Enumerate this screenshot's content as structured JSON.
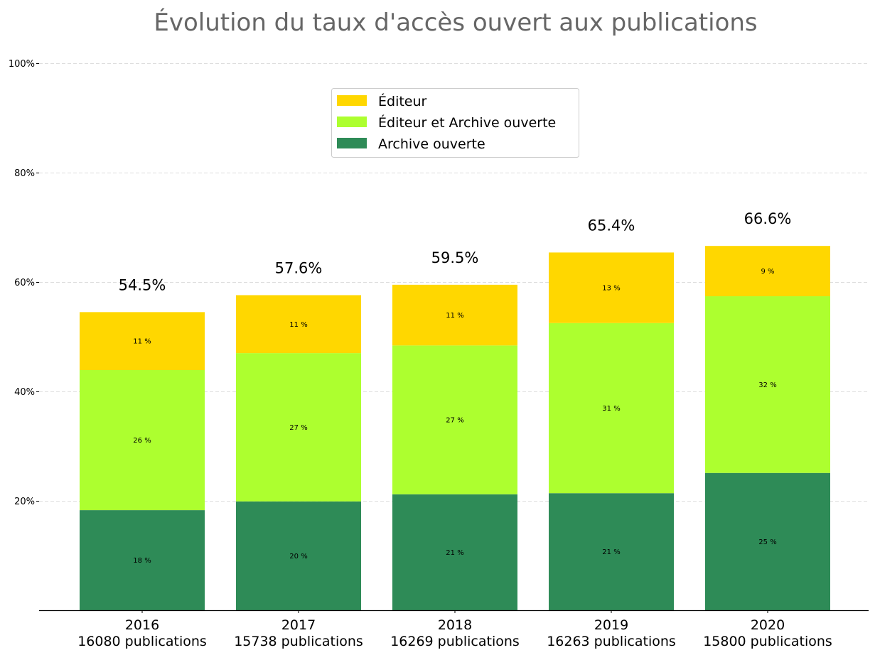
{
  "chart_data": {
    "type": "bar",
    "stacked": true,
    "title": "Évolution du taux d'accès ouvert aux publications",
    "xlabel": "",
    "ylabel": "",
    "ylim": [
      0,
      100
    ],
    "yticks": [
      20,
      40,
      60,
      80,
      100
    ],
    "ytick_labels": [
      "20%",
      "40%",
      "60%",
      "80%",
      "100%"
    ],
    "grid": "y, dashed",
    "categories": [
      "2016",
      "2017",
      "2018",
      "2019",
      "2020"
    ],
    "category_sublabels": [
      "16080 publications",
      "15738 publications",
      "16269 publications",
      "16263 publications",
      "15800 publications"
    ],
    "series": [
      {
        "name": "Archive ouverte",
        "color": "#2e8b57",
        "values": [
          18.3,
          19.9,
          21.2,
          21.4,
          25.1
        ],
        "labels": [
          "18 %",
          "20 %",
          "21 %",
          "21 %",
          "25 %"
        ]
      },
      {
        "name": "Éditeur et Archive ouverte",
        "color": "#adff2f",
        "values": [
          25.6,
          27.1,
          27.2,
          31.1,
          32.3
        ],
        "labels": [
          "26 %",
          "27 %",
          "27 %",
          "31 %",
          "32 %"
        ]
      },
      {
        "name": "Éditeur",
        "color": "#ffd700",
        "values": [
          10.6,
          10.6,
          11.1,
          12.9,
          9.2
        ],
        "labels": [
          "11 %",
          "11 %",
          "11 %",
          "13 %",
          "9 %"
        ]
      }
    ],
    "totals": [
      54.5,
      57.6,
      59.5,
      65.4,
      66.6
    ],
    "total_labels": [
      "54.5%",
      "57.6%",
      "59.5%",
      "65.4%",
      "66.6%"
    ],
    "legend": {
      "placement": "top-center",
      "entries": [
        "Éditeur",
        "Éditeur et Archive ouverte",
        "Archive ouverte"
      ]
    }
  }
}
